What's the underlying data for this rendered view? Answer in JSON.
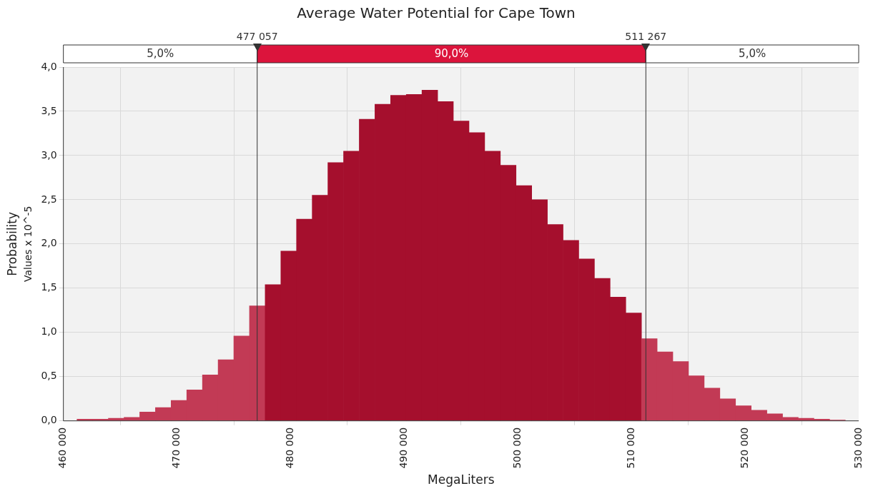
{
  "chart_data": {
    "type": "histogram",
    "title": "Average Water Potential for Cape Town",
    "xlabel": "MegaLiters",
    "ylabel": "Probability",
    "annotations": [
      "5,0%",
      "90,0%",
      "5,0%",
      "Values x 10^-5"
    ],
    "bins": [
      461200,
      462580,
      463960,
      465340,
      466720,
      468100,
      469480,
      470860,
      472240,
      473620,
      475000,
      476380,
      477760,
      479140,
      480520,
      481900,
      483280,
      484660,
      486040,
      487420,
      488800,
      490180,
      491560,
      492940,
      494320,
      495700,
      497080,
      498460,
      499840,
      501220,
      502600,
      503980,
      505360,
      506740,
      508120,
      509500,
      510880,
      512260,
      513640,
      515020,
      516400,
      517780,
      519160,
      520540,
      521920,
      523300,
      524680,
      526060,
      527440,
      528820
    ],
    "values": [
      0.02,
      0.02,
      0.03,
      0.04,
      0.1,
      0.15,
      0.23,
      0.35,
      0.52,
      0.69,
      0.96,
      1.3,
      1.54,
      1.92,
      2.28,
      2.55,
      2.92,
      3.05,
      3.41,
      3.58,
      3.68,
      3.69,
      3.74,
      3.61,
      3.39,
      3.26,
      3.05,
      2.89,
      2.66,
      2.5,
      2.22,
      2.04,
      1.83,
      1.61,
      1.4,
      1.22,
      0.93,
      0.78,
      0.67,
      0.51,
      0.37,
      0.25,
      0.17,
      0.12,
      0.08,
      0.04,
      0.03,
      0.02,
      0.01
    ],
    "colors": [
      "#c23a55",
      "#c23a55",
      "#c23a55",
      "#c23a55",
      "#c23a55",
      "#c23a55",
      "#c23a55",
      "#c23a55",
      "#c23a55",
      "#c23a55",
      "#c23a55",
      "#c23a55",
      "#a50f2d",
      "#a50f2d",
      "#a50f2d",
      "#a50f2d",
      "#a50f2d",
      "#a50f2d",
      "#a50f2d",
      "#a50f2d",
      "#a50f2d",
      "#a50f2d",
      "#a50f2d",
      "#a50f2d",
      "#a50f2d",
      "#a50f2d",
      "#a50f2d",
      "#a50f2d",
      "#a50f2d",
      "#a50f2d",
      "#a50f2d",
      "#a50f2d",
      "#a50f2d",
      "#a50f2d",
      "#a50f2d",
      "#a50f2d",
      "#c23a55",
      "#c23a55",
      "#c23a55",
      "#c23a55",
      "#c23a55",
      "#c23a55",
      "#c23a55",
      "#c23a55",
      "#c23a55",
      "#c23a55",
      "#c23a55",
      "#c23a55",
      "#c23a55"
    ],
    "xlim": [
      460000,
      530000
    ],
    "xticks": [
      {
        "value": 460000,
        "label": "460 000"
      },
      {
        "value": 470000,
        "label": "470 000"
      },
      {
        "value": 480000,
        "label": "480 000"
      },
      {
        "value": 490000,
        "label": "490 000"
      },
      {
        "value": 500000,
        "label": "500 000"
      },
      {
        "value": 510000,
        "label": "510 000"
      },
      {
        "value": 520000,
        "label": "520 000"
      },
      {
        "value": 530000,
        "label": "530 000"
      }
    ],
    "ylim": [
      0,
      4
    ],
    "yticks": [
      {
        "value": 0,
        "label": "0,0"
      },
      {
        "value": 0.5,
        "label": "0,5"
      },
      {
        "value": 1,
        "label": "1,0"
      },
      {
        "value": 1.5,
        "label": "1,5"
      },
      {
        "value": 2,
        "label": "2,0"
      },
      {
        "value": 2.5,
        "label": "2,5"
      },
      {
        "value": 3,
        "label": "3,0"
      },
      {
        "value": 3.5,
        "label": "3,5"
      },
      {
        "value": 4,
        "label": "4,0"
      }
    ],
    "grid": true,
    "ref_lines": [
      {
        "axis": "x",
        "value": 477057,
        "label": "477 057",
        "color": "#333333"
      },
      {
        "axis": "x",
        "value": 511267,
        "label": "511 267",
        "color": "#333333"
      }
    ]
  }
}
